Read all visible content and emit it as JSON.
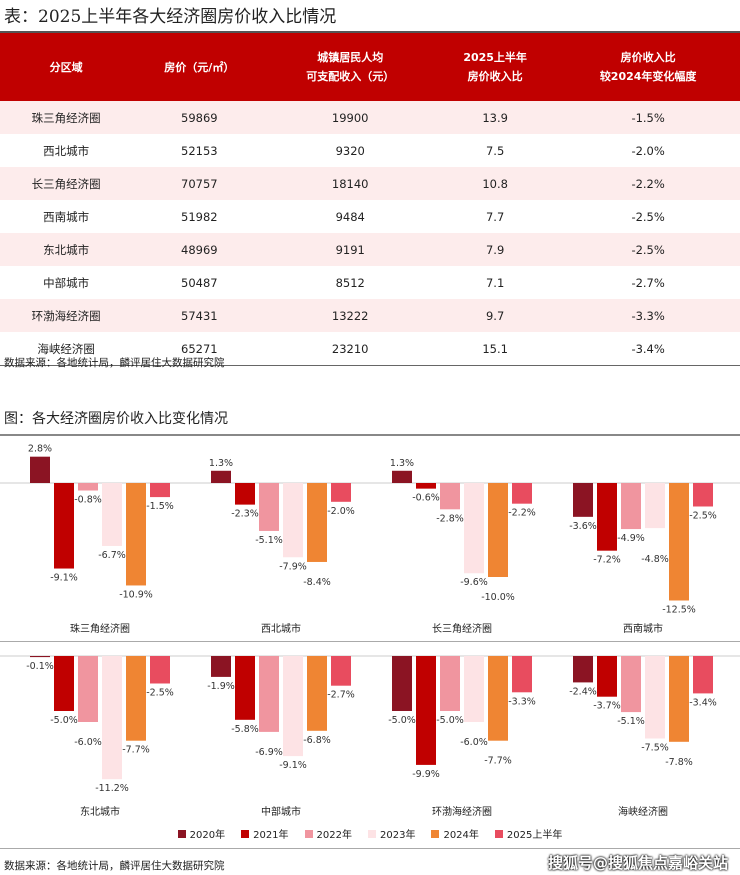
{
  "table_title": "表：2025上半年各大经济圈房价收入比情况",
  "table": {
    "headers": [
      "分区域",
      "房价（元/㎡）",
      "城镇居民人均\n可支配收入（元）",
      "2025上半年\n房价收入比",
      "房价收入比\n较2024年变化幅度"
    ],
    "rows": [
      [
        "珠三角经济圈",
        "59869",
        "19900",
        "13.9",
        "-1.5%"
      ],
      [
        "西北城市",
        "52153",
        "9320",
        "7.5",
        "-2.0%"
      ],
      [
        "长三角经济圈",
        "70757",
        "18140",
        "10.8",
        "-2.2%"
      ],
      [
        "西南城市",
        "51982",
        "9484",
        "7.7",
        "-2.5%"
      ],
      [
        "东北城市",
        "48969",
        "9191",
        "7.9",
        "-2.5%"
      ],
      [
        "中部城市",
        "50487",
        "8512",
        "7.1",
        "-2.7%"
      ],
      [
        "环渤海经济圈",
        "57431",
        "13222",
        "9.7",
        "-3.3%"
      ],
      [
        "海峡经济圈",
        "65271",
        "23210",
        "15.1",
        "-3.4%"
      ]
    ]
  },
  "table_source": "数据来源：各地统计局，麟评居住大数据研究院",
  "chart_title": "图：各大经济圈房价收入比变化情况",
  "chart_data": {
    "type": "bar",
    "categories": [
      "珠三角经济圈",
      "西北城市",
      "长三角经济圈",
      "西南城市",
      "东北城市",
      "中部城市",
      "环渤海经济圈",
      "海峡经济圈"
    ],
    "series": [
      {
        "name": "2020年",
        "color": "#8b1423",
        "values": [
          2.8,
          1.3,
          1.3,
          -3.6,
          -0.1,
          -1.9,
          -5.0,
          -2.4
        ]
      },
      {
        "name": "2021年",
        "color": "#c00000",
        "values": [
          -9.1,
          -2.3,
          -0.6,
          -7.2,
          -5.0,
          -5.8,
          -9.9,
          -3.7
        ]
      },
      {
        "name": "2022年",
        "color": "#f0959f",
        "values": [
          -0.8,
          -5.1,
          -2.8,
          -4.9,
          -6.0,
          -6.9,
          -5.0,
          -5.1
        ]
      },
      {
        "name": "2023年",
        "color": "#fde3e5",
        "values": [
          -6.7,
          -7.9,
          -9.6,
          -4.8,
          -11.2,
          -9.1,
          -6.0,
          -7.5
        ]
      },
      {
        "name": "2024年",
        "color": "#ef8533",
        "values": [
          -10.9,
          -8.4,
          -10.0,
          -12.5,
          -7.7,
          -6.8,
          -7.7,
          -7.8
        ]
      },
      {
        "name": "2025上半年",
        "color": "#e84c5f",
        "values": [
          -1.5,
          -2.0,
          -2.2,
          -2.5,
          -2.5,
          -2.7,
          -3.3,
          -3.4
        ]
      }
    ],
    "unit": "%",
    "legend": "bottom",
    "grid": false
  },
  "chart_source": "数据来源：各地统计局，麟评居住大数据研究院",
  "watermark": "搜狐号@搜狐焦点嘉峪关站"
}
